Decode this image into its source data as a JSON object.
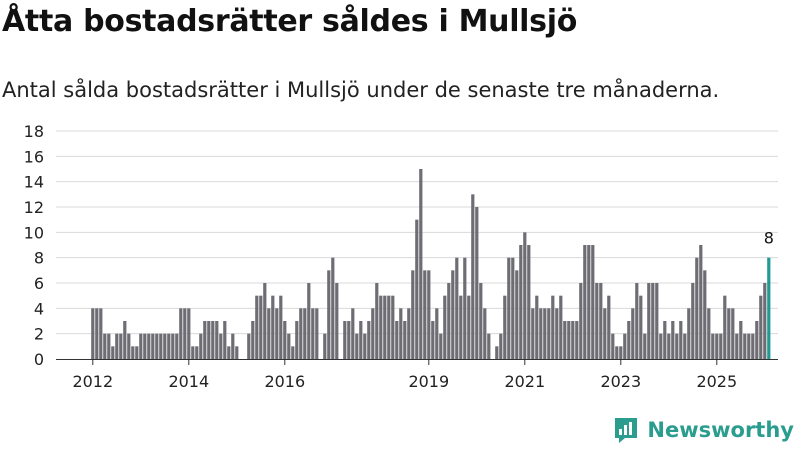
{
  "title": "Åtta bostadsrätter såldes i Mullsjö",
  "subtitle": "Antal sålda bostadsrätter i Mullsjö under de senaste tre månaderna.",
  "brand": "Newsworthy",
  "colors": {
    "bar": "#6e6d73",
    "highlight": "#1f9a94",
    "grid": "#d9d9d9",
    "brand": "#2a9d8f"
  },
  "chart_data": {
    "type": "bar",
    "title": "Åtta bostadsrätter såldes i Mullsjö",
    "xlabel": "",
    "ylabel": "",
    "ylim": [
      0,
      18
    ],
    "yticks": [
      0,
      2,
      4,
      6,
      8,
      10,
      12,
      14,
      16,
      18
    ],
    "x_tick_labels": [
      "2012",
      "2014",
      "2016",
      "2019",
      "2021",
      "2023",
      "2025"
    ],
    "x_tick_months": [
      0,
      24,
      48,
      84,
      108,
      132,
      156
    ],
    "start": "2011-12",
    "end": "2025-09",
    "values": [
      4,
      4,
      4,
      2,
      2,
      1,
      2,
      2,
      3,
      2,
      1,
      1,
      2,
      2,
      2,
      2,
      2,
      2,
      2,
      2,
      2,
      2,
      4,
      4,
      4,
      1,
      1,
      2,
      3,
      3,
      3,
      3,
      2,
      3,
      1,
      2,
      1,
      0,
      0,
      2,
      3,
      5,
      5,
      6,
      4,
      5,
      4,
      5,
      3,
      2,
      1,
      3,
      4,
      4,
      6,
      4,
      4,
      0,
      2,
      7,
      8,
      6,
      0,
      3,
      3,
      4,
      2,
      3,
      2,
      3,
      4,
      6,
      5,
      5,
      5,
      5,
      3,
      4,
      3,
      4,
      7,
      11,
      15,
      7,
      7,
      3,
      4,
      2,
      5,
      6,
      7,
      8,
      5,
      8,
      5,
      13,
      12,
      6,
      4,
      2,
      0,
      1,
      2,
      5,
      8,
      8,
      7,
      9,
      10,
      9,
      4,
      5,
      4,
      4,
      4,
      5,
      4,
      5,
      3,
      3,
      3,
      3,
      6,
      9,
      9,
      9,
      6,
      6,
      4,
      5,
      2,
      1,
      1,
      2,
      3,
      4,
      6,
      5,
      2,
      6,
      6,
      6,
      2,
      3,
      2,
      3,
      2,
      3,
      2,
      4,
      6,
      8,
      9,
      7,
      4,
      2,
      2,
      2,
      5,
      4,
      4,
      2,
      3,
      2,
      2,
      2,
      3,
      5,
      6,
      8
    ],
    "highlight_last": true,
    "annotations": [
      {
        "label": "8",
        "target": "last-bar"
      }
    ]
  }
}
